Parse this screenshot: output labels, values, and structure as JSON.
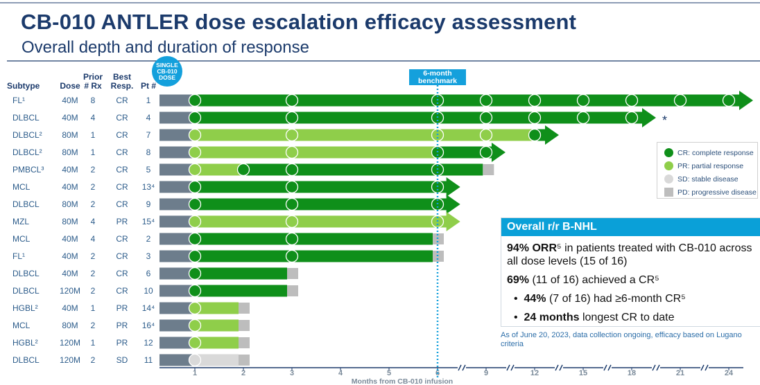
{
  "chart_data": {
    "type": "swimmer",
    "title": "CB-010 ANTLER dose escalation efficacy assessment",
    "subtitle": "Overall depth and duration of response",
    "columns": [
      "Subtype",
      "Dose",
      "Prior # Rx",
      "Best Resp.",
      "Pt #"
    ],
    "single_dose": "SINGLE CB-010 DOSE",
    "xlabel": "Months from CB-010 infusion",
    "xticks": [
      1,
      2,
      3,
      4,
      5,
      6,
      9,
      12,
      15,
      18,
      21,
      24
    ],
    "benchmark": {
      "value": 6,
      "label": "6-month benchmark"
    },
    "legend": [
      {
        "key": "CR",
        "label": "CR: complete response",
        "color": "#0f8f1a",
        "shape": "circle"
      },
      {
        "key": "PR",
        "label": "PR: partial response",
        "color": "#8fce4a",
        "shape": "circle"
      },
      {
        "key": "SD",
        "label": "SD: stable disease",
        "color": "#d9d9d9",
        "shape": "circle"
      },
      {
        "key": "PD",
        "label": "PD: progressive disease",
        "color": "#bdbdbd",
        "shape": "square"
      }
    ],
    "patients": [
      {
        "subtype": "FL¹",
        "dose": "40M",
        "prior": "8",
        "best": "CR",
        "pt": "1",
        "assessments": [
          1,
          3,
          6,
          9,
          12,
          15,
          18,
          21,
          24
        ],
        "responses": [
          "CR",
          "CR",
          "CR",
          "CR",
          "CR",
          "CR",
          "CR",
          "CR",
          "CR"
        ],
        "end": 25.5,
        "ongoing": true
      },
      {
        "subtype": "DLBCL",
        "dose": "40M",
        "prior": "4",
        "best": "CR",
        "pt": "4",
        "assessments": [
          1,
          3,
          6,
          9,
          12,
          15,
          18
        ],
        "responses": [
          "CR",
          "CR",
          "CR",
          "CR",
          "CR",
          "CR",
          "CR"
        ],
        "end": 19.5,
        "ongoing": true,
        "note": "*"
      },
      {
        "subtype": "DLBCL²",
        "dose": "80M",
        "prior": "1",
        "best": "CR",
        "pt": "7",
        "assessments": [
          1,
          3,
          6,
          9,
          12
        ],
        "responses": [
          "PR",
          "PR",
          "PR",
          "PR",
          "CR"
        ],
        "end": 13.5,
        "ongoing": true
      },
      {
        "subtype": "DLBCL²",
        "dose": "80M",
        "prior": "1",
        "best": "CR",
        "pt": "8",
        "assessments": [
          1,
          3,
          6,
          9
        ],
        "responses": [
          "PR",
          "PR",
          "CR",
          "CR"
        ],
        "end": 10.2,
        "ongoing": true
      },
      {
        "subtype": "PMBCL³",
        "dose": "40M",
        "prior": "2",
        "best": "CR",
        "pt": "5",
        "assessments": [
          1,
          2,
          3,
          6
        ],
        "responses": [
          "PR",
          "CR",
          "CR",
          "CR"
        ],
        "end": 8.8,
        "progression": true
      },
      {
        "subtype": "MCL",
        "dose": "40M",
        "prior": "2",
        "best": "CR",
        "pt": "13⁴",
        "assessments": [
          1,
          3,
          6
        ],
        "responses": [
          "CR",
          "CR",
          "CR"
        ],
        "end": 7.4,
        "ongoing": true
      },
      {
        "subtype": "DLBCL",
        "dose": "80M",
        "prior": "2",
        "best": "CR",
        "pt": "9",
        "assessments": [
          1,
          3,
          6
        ],
        "responses": [
          "CR",
          "CR",
          "CR"
        ],
        "end": 7.4,
        "ongoing": true
      },
      {
        "subtype": "MZL",
        "dose": "80M",
        "prior": "4",
        "best": "PR",
        "pt": "15⁴",
        "assessments": [
          1,
          3,
          6
        ],
        "responses": [
          "PR",
          "PR",
          "PR"
        ],
        "end": 7.4,
        "ongoing": true
      },
      {
        "subtype": "MCL",
        "dose": "40M",
        "prior": "4",
        "best": "CR",
        "pt": "2",
        "assessments": [
          1,
          3
        ],
        "responses": [
          "CR",
          "CR"
        ],
        "end": 5.9,
        "progression": true
      },
      {
        "subtype": "FL¹",
        "dose": "40M",
        "prior": "2",
        "best": "CR",
        "pt": "3",
        "assessments": [
          1,
          3
        ],
        "responses": [
          "CR",
          "CR"
        ],
        "end": 5.9,
        "progression": true
      },
      {
        "subtype": "DLBCL",
        "dose": "40M",
        "prior": "2",
        "best": "CR",
        "pt": "6",
        "assessments": [
          1
        ],
        "responses": [
          "CR"
        ],
        "end": 2.9,
        "progression": true
      },
      {
        "subtype": "DLBCL",
        "dose": "120M",
        "prior": "2",
        "best": "CR",
        "pt": "10",
        "assessments": [
          1
        ],
        "responses": [
          "CR"
        ],
        "end": 2.9,
        "progression": true
      },
      {
        "subtype": "HGBL²",
        "dose": "40M",
        "prior": "1",
        "best": "PR",
        "pt": "14⁴",
        "assessments": [
          1
        ],
        "responses": [
          "PR"
        ],
        "end": 1.9,
        "progression": true
      },
      {
        "subtype": "MCL",
        "dose": "80M",
        "prior": "2",
        "best": "PR",
        "pt": "16⁴",
        "assessments": [
          1
        ],
        "responses": [
          "PR"
        ],
        "end": 1.9,
        "progression": true
      },
      {
        "subtype": "HGBL²",
        "dose": "120M",
        "prior": "1",
        "best": "PR",
        "pt": "12",
        "assessments": [
          1
        ],
        "responses": [
          "PR"
        ],
        "end": 1.9,
        "progression": true
      },
      {
        "subtype": "DLBCL",
        "dose": "120M",
        "prior": "2",
        "best": "SD",
        "pt": "11",
        "assessments": [
          1
        ],
        "responses": [
          "SD"
        ],
        "end": 1.9,
        "progression": true
      }
    ],
    "summary": {
      "title": "Overall r/r B-NHL",
      "lines": [
        {
          "bold": "94% ORR",
          "rest": "⁵ in patients treated with CB-010 across all dose levels (15 of 16)"
        },
        {
          "bold": "69%",
          "rest": " (11 of 16) achieved a CR⁵"
        },
        {
          "bullet": "•",
          "bold": "44%",
          "rest": " (7 of 16) had ≥6-month CR⁵"
        },
        {
          "bullet": "•",
          "bold": "24 months",
          "rest": " longest CR to date"
        }
      ],
      "footnote": "As of June 20, 2023, data collection ongoing, efficacy based on Lugano criteria"
    }
  }
}
